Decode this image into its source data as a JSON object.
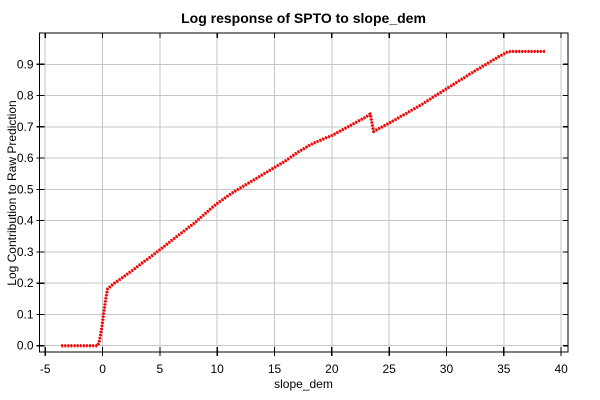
{
  "figure": {
    "background": "#ffffff"
  },
  "chart_data": {
    "type": "line",
    "title": "Log response of SPTO to slope_dem",
    "xlabel": "slope_dem",
    "ylabel": "Log Contribution to Raw Prediction",
    "xlim": [
      -5.5,
      40.6
    ],
    "ylim": [
      -0.02,
      1.0
    ],
    "xticks": [
      -5,
      0,
      5,
      10,
      15,
      20,
      25,
      30,
      35,
      40
    ],
    "xtick_labels": [
      "-5",
      "0",
      "5",
      "10",
      "15",
      "20",
      "25",
      "30",
      "35",
      "40"
    ],
    "yticks": [
      0.0,
      0.1,
      0.2,
      0.3,
      0.4,
      0.5,
      0.6,
      0.7,
      0.8,
      0.9
    ],
    "ytick_labels": [
      "0.0",
      "0.1",
      "0.2",
      "0.3",
      "0.4",
      "0.5",
      "0.6",
      "0.7",
      "0.8",
      "0.9"
    ],
    "grid": true,
    "grid_color": "#c6c6c6",
    "border_color": "#000000",
    "line_color": "#ec0000",
    "line_core_color": "#fd5a5a",
    "line_style": "thick-dotted",
    "legend": null,
    "series": [
      {
        "name": "SPTO log response",
        "points": [
          [
            -3.6,
            0.0
          ],
          [
            -3.2,
            0.0
          ],
          [
            -2.8,
            0.0
          ],
          [
            -2.4,
            0.0
          ],
          [
            -2.0,
            0.0
          ],
          [
            -1.6,
            0.0
          ],
          [
            -1.2,
            0.0
          ],
          [
            -0.8,
            0.0
          ],
          [
            -0.45,
            0.0
          ],
          [
            -0.3,
            0.01
          ],
          [
            -0.1,
            0.05
          ],
          [
            0.1,
            0.105
          ],
          [
            0.3,
            0.155
          ],
          [
            0.45,
            0.182
          ],
          [
            1.0,
            0.199
          ],
          [
            1.5,
            0.212
          ],
          [
            2.0,
            0.225
          ],
          [
            2.5,
            0.238
          ],
          [
            3.0,
            0.252
          ],
          [
            3.5,
            0.266
          ],
          [
            4.0,
            0.279
          ],
          [
            4.5,
            0.293
          ],
          [
            5.0,
            0.307
          ],
          [
            5.5,
            0.321
          ],
          [
            6.0,
            0.336
          ],
          [
            6.5,
            0.35
          ],
          [
            7.0,
            0.364
          ],
          [
            7.5,
            0.378
          ],
          [
            8.0,
            0.392
          ],
          [
            8.5,
            0.408
          ],
          [
            9.0,
            0.424
          ],
          [
            9.5,
            0.44
          ],
          [
            10.0,
            0.455
          ],
          [
            10.5,
            0.468
          ],
          [
            11.0,
            0.481
          ],
          [
            11.5,
            0.493
          ],
          [
            12.0,
            0.504
          ],
          [
            12.5,
            0.515
          ],
          [
            13.0,
            0.526
          ],
          [
            13.5,
            0.537
          ],
          [
            14.0,
            0.548
          ],
          [
            14.5,
            0.559
          ],
          [
            15.0,
            0.57
          ],
          [
            15.5,
            0.581
          ],
          [
            16.0,
            0.592
          ],
          [
            16.5,
            0.605
          ],
          [
            17.0,
            0.618
          ],
          [
            17.5,
            0.629
          ],
          [
            18.0,
            0.64
          ],
          [
            18.5,
            0.649
          ],
          [
            19.0,
            0.657
          ],
          [
            19.5,
            0.665
          ],
          [
            20.0,
            0.672
          ],
          [
            20.5,
            0.682
          ],
          [
            21.0,
            0.692
          ],
          [
            21.5,
            0.702
          ],
          [
            22.0,
            0.712
          ],
          [
            22.5,
            0.722
          ],
          [
            23.0,
            0.732
          ],
          [
            23.35,
            0.741
          ],
          [
            23.5,
            0.712
          ],
          [
            23.65,
            0.685
          ],
          [
            24.0,
            0.692
          ],
          [
            24.5,
            0.702
          ],
          [
            25.0,
            0.712
          ],
          [
            25.5,
            0.722
          ],
          [
            26.0,
            0.733
          ],
          [
            26.5,
            0.743
          ],
          [
            27.0,
            0.754
          ],
          [
            27.5,
            0.764
          ],
          [
            28.0,
            0.775
          ],
          [
            28.5,
            0.787
          ],
          [
            29.0,
            0.799
          ],
          [
            29.5,
            0.81
          ],
          [
            30.0,
            0.822
          ],
          [
            30.5,
            0.833
          ],
          [
            31.0,
            0.845
          ],
          [
            31.5,
            0.856
          ],
          [
            32.0,
            0.868
          ],
          [
            32.5,
            0.879
          ],
          [
            33.0,
            0.89
          ],
          [
            33.5,
            0.901
          ],
          [
            34.0,
            0.912
          ],
          [
            34.5,
            0.923
          ],
          [
            35.0,
            0.933
          ],
          [
            35.35,
            0.94
          ],
          [
            35.8,
            0.941
          ],
          [
            36.2,
            0.941
          ],
          [
            36.6,
            0.941
          ],
          [
            37.0,
            0.941
          ],
          [
            37.4,
            0.941
          ],
          [
            37.8,
            0.941
          ],
          [
            38.2,
            0.941
          ],
          [
            38.6,
            0.941
          ]
        ]
      }
    ]
  }
}
